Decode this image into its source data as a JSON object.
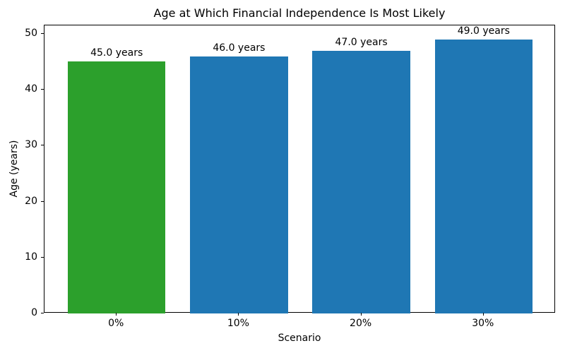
{
  "chart_data": {
    "type": "bar",
    "title": "Age at Which Financial Independence Is Most Likely",
    "xlabel": "Scenario",
    "ylabel": "Age (years)",
    "categories": [
      "0%",
      "10%",
      "20%",
      "30%"
    ],
    "values": [
      45.0,
      46.0,
      47.0,
      49.0
    ],
    "bar_labels": [
      "45.0 years",
      "46.0 years",
      "47.0 years",
      "49.0 years"
    ],
    "bar_colors": [
      "#2ca02c",
      "#1f77b4",
      "#1f77b4",
      "#1f77b4"
    ],
    "ylim": [
      0,
      51.5
    ],
    "yticks": [
      0,
      10,
      20,
      30,
      40,
      50
    ],
    "grid": false,
    "legend": "none",
    "background_color": "#ffffff",
    "frame_color": "#000000"
  }
}
